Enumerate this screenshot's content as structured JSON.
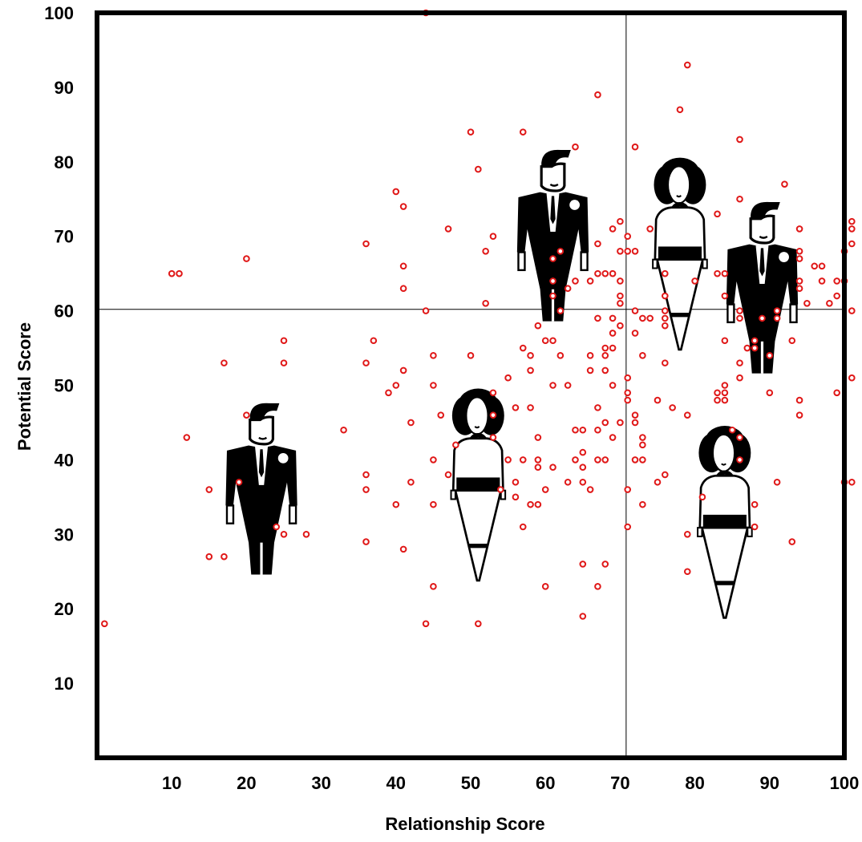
{
  "chart_data": {
    "type": "scatter",
    "title": "",
    "xlabel": "Relationship Score",
    "ylabel": "Potential Score",
    "xlim": [
      0,
      100
    ],
    "ylim": [
      0,
      100
    ],
    "x_ticks": [
      "10",
      "20",
      "30",
      "40",
      "50",
      "60",
      "70",
      "80",
      "90",
      "100"
    ],
    "y_ticks": [
      "10",
      "20",
      "30",
      "40",
      "50",
      "60",
      "70",
      "80",
      "90",
      "100"
    ],
    "divider_x": 70.8,
    "divider_y": 60.2,
    "grid": false,
    "marker_color": "#e01818",
    "points": [
      [
        1,
        18
      ],
      [
        10,
        65
      ],
      [
        11,
        65
      ],
      [
        12,
        43
      ],
      [
        15,
        27
      ],
      [
        15,
        36
      ],
      [
        17,
        27
      ],
      [
        17,
        53
      ],
      [
        19,
        37
      ],
      [
        20,
        46
      ],
      [
        20,
        67
      ],
      [
        24,
        31
      ],
      [
        25,
        56
      ],
      [
        25,
        53
      ],
      [
        25,
        30
      ],
      [
        28,
        30
      ],
      [
        33,
        44
      ],
      [
        36,
        69
      ],
      [
        36,
        53
      ],
      [
        36,
        38
      ],
      [
        36,
        36
      ],
      [
        36,
        29
      ],
      [
        37,
        56
      ],
      [
        39,
        49
      ],
      [
        40,
        76
      ],
      [
        40,
        50
      ],
      [
        40,
        34
      ],
      [
        41,
        74
      ],
      [
        41,
        66
      ],
      [
        41,
        63
      ],
      [
        41,
        52
      ],
      [
        41,
        28
      ],
      [
        42,
        45
      ],
      [
        42,
        37
      ],
      [
        44,
        100
      ],
      [
        44,
        60
      ],
      [
        44,
        18
      ],
      [
        45,
        54
      ],
      [
        45,
        50
      ],
      [
        45,
        40
      ],
      [
        45,
        34
      ],
      [
        45,
        23
      ],
      [
        46,
        46
      ],
      [
        47,
        71
      ],
      [
        47,
        38
      ],
      [
        48,
        42
      ],
      [
        50,
        84
      ],
      [
        50,
        54
      ],
      [
        51,
        79
      ],
      [
        51,
        18
      ],
      [
        52,
        68
      ],
      [
        52,
        61
      ],
      [
        53,
        70
      ],
      [
        53,
        49
      ],
      [
        53,
        46
      ],
      [
        53,
        43
      ],
      [
        54,
        36
      ],
      [
        55,
        51
      ],
      [
        55,
        40
      ],
      [
        56,
        47
      ],
      [
        56,
        37
      ],
      [
        56,
        35
      ],
      [
        57,
        84
      ],
      [
        57,
        55
      ],
      [
        57,
        40
      ],
      [
        57,
        31
      ],
      [
        58,
        54
      ],
      [
        58,
        52
      ],
      [
        58,
        47
      ],
      [
        58,
        34
      ],
      [
        59,
        58
      ],
      [
        59,
        43
      ],
      [
        59,
        40
      ],
      [
        59,
        39
      ],
      [
        59,
        34
      ],
      [
        60,
        56
      ],
      [
        60,
        36
      ],
      [
        60,
        23
      ],
      [
        61,
        56
      ],
      [
        61,
        50
      ],
      [
        61,
        39
      ],
      [
        61,
        67
      ],
      [
        61,
        64
      ],
      [
        61,
        62
      ],
      [
        62,
        68
      ],
      [
        62,
        60
      ],
      [
        62,
        54
      ],
      [
        63,
        50
      ],
      [
        63,
        37
      ],
      [
        63,
        63
      ],
      [
        64,
        82
      ],
      [
        64,
        64
      ],
      [
        64,
        44
      ],
      [
        64,
        40
      ],
      [
        65,
        44
      ],
      [
        65,
        41
      ],
      [
        65,
        39
      ],
      [
        65,
        37
      ],
      [
        65,
        26
      ],
      [
        65,
        19
      ],
      [
        66,
        54
      ],
      [
        66,
        52
      ],
      [
        66,
        64
      ],
      [
        66,
        36
      ],
      [
        67,
        89
      ],
      [
        67,
        69
      ],
      [
        67,
        65
      ],
      [
        67,
        59
      ],
      [
        67,
        47
      ],
      [
        67,
        44
      ],
      [
        67,
        40
      ],
      [
        67,
        23
      ],
      [
        68,
        65
      ],
      [
        68,
        55
      ],
      [
        68,
        54
      ],
      [
        68,
        52
      ],
      [
        68,
        45
      ],
      [
        68,
        40
      ],
      [
        68,
        26
      ],
      [
        69,
        71
      ],
      [
        69,
        65
      ],
      [
        69,
        59
      ],
      [
        69,
        57
      ],
      [
        69,
        55
      ],
      [
        69,
        50
      ],
      [
        69,
        43
      ],
      [
        70,
        72
      ],
      [
        70,
        68
      ],
      [
        70,
        64
      ],
      [
        70,
        62
      ],
      [
        70,
        61
      ],
      [
        70,
        58
      ],
      [
        70,
        45
      ],
      [
        71,
        70
      ],
      [
        71,
        68
      ],
      [
        71,
        51
      ],
      [
        71,
        49
      ],
      [
        71,
        48
      ],
      [
        71,
        36
      ],
      [
        71,
        31
      ],
      [
        72,
        82
      ],
      [
        72,
        68
      ],
      [
        72,
        60
      ],
      [
        72,
        57
      ],
      [
        72,
        46
      ],
      [
        72,
        45
      ],
      [
        72,
        40
      ],
      [
        73,
        59
      ],
      [
        73,
        54
      ],
      [
        73,
        43
      ],
      [
        73,
        42
      ],
      [
        73,
        40
      ],
      [
        73,
        34
      ],
      [
        74,
        71
      ],
      [
        74,
        59
      ],
      [
        75,
        48
      ],
      [
        75,
        37
      ],
      [
        76,
        65
      ],
      [
        76,
        62
      ],
      [
        76,
        60
      ],
      [
        76,
        59
      ],
      [
        76,
        58
      ],
      [
        76,
        53
      ],
      [
        76,
        38
      ],
      [
        77,
        47
      ],
      [
        78,
        87
      ],
      [
        79,
        93
      ],
      [
        79,
        46
      ],
      [
        79,
        30
      ],
      [
        79,
        25
      ],
      [
        80,
        64
      ],
      [
        81,
        35
      ],
      [
        83,
        73
      ],
      [
        83,
        65
      ],
      [
        83,
        49
      ],
      [
        83,
        48
      ],
      [
        84,
        65
      ],
      [
        84,
        62
      ],
      [
        84,
        56
      ],
      [
        84,
        50
      ],
      [
        84,
        49
      ],
      [
        84,
        48
      ],
      [
        85,
        44
      ],
      [
        86,
        83
      ],
      [
        86,
        75
      ],
      [
        86,
        60
      ],
      [
        86,
        59
      ],
      [
        86,
        53
      ],
      [
        86,
        51
      ],
      [
        86,
        43
      ],
      [
        86,
        40
      ],
      [
        87,
        55
      ],
      [
        88,
        56
      ],
      [
        88,
        55
      ],
      [
        88,
        34
      ],
      [
        88,
        31
      ],
      [
        89,
        59
      ],
      [
        90,
        54
      ],
      [
        90,
        49
      ],
      [
        91,
        60
      ],
      [
        91,
        59
      ],
      [
        91,
        37
      ],
      [
        92,
        77
      ],
      [
        93,
        56
      ],
      [
        93,
        29
      ],
      [
        94,
        71
      ],
      [
        94,
        68
      ],
      [
        94,
        67
      ],
      [
        94,
        64
      ],
      [
        94,
        63
      ],
      [
        94,
        48
      ],
      [
        94,
        46
      ],
      [
        95,
        61
      ],
      [
        96,
        66
      ],
      [
        97,
        66
      ],
      [
        97,
        64
      ],
      [
        98,
        61
      ],
      [
        99,
        64
      ],
      [
        99,
        62
      ],
      [
        99,
        49
      ],
      [
        100,
        68
      ],
      [
        100,
        64
      ],
      [
        100,
        37
      ],
      [
        101,
        72
      ],
      [
        101,
        71
      ],
      [
        101,
        69
      ],
      [
        101,
        60
      ],
      [
        101,
        51
      ],
      [
        101,
        37
      ]
    ],
    "figures": [
      {
        "kind": "man",
        "x": 22,
        "y": 27,
        "height": 23
      },
      {
        "kind": "woman",
        "x": 51,
        "y": 27,
        "height": 23
      },
      {
        "kind": "man",
        "x": 61,
        "y": 61,
        "height": 23
      },
      {
        "kind": "woman",
        "x": 78,
        "y": 58,
        "height": 23
      },
      {
        "kind": "man",
        "x": 89,
        "y": 54,
        "height": 23
      },
      {
        "kind": "woman",
        "x": 84,
        "y": 22,
        "height": 23
      }
    ]
  }
}
